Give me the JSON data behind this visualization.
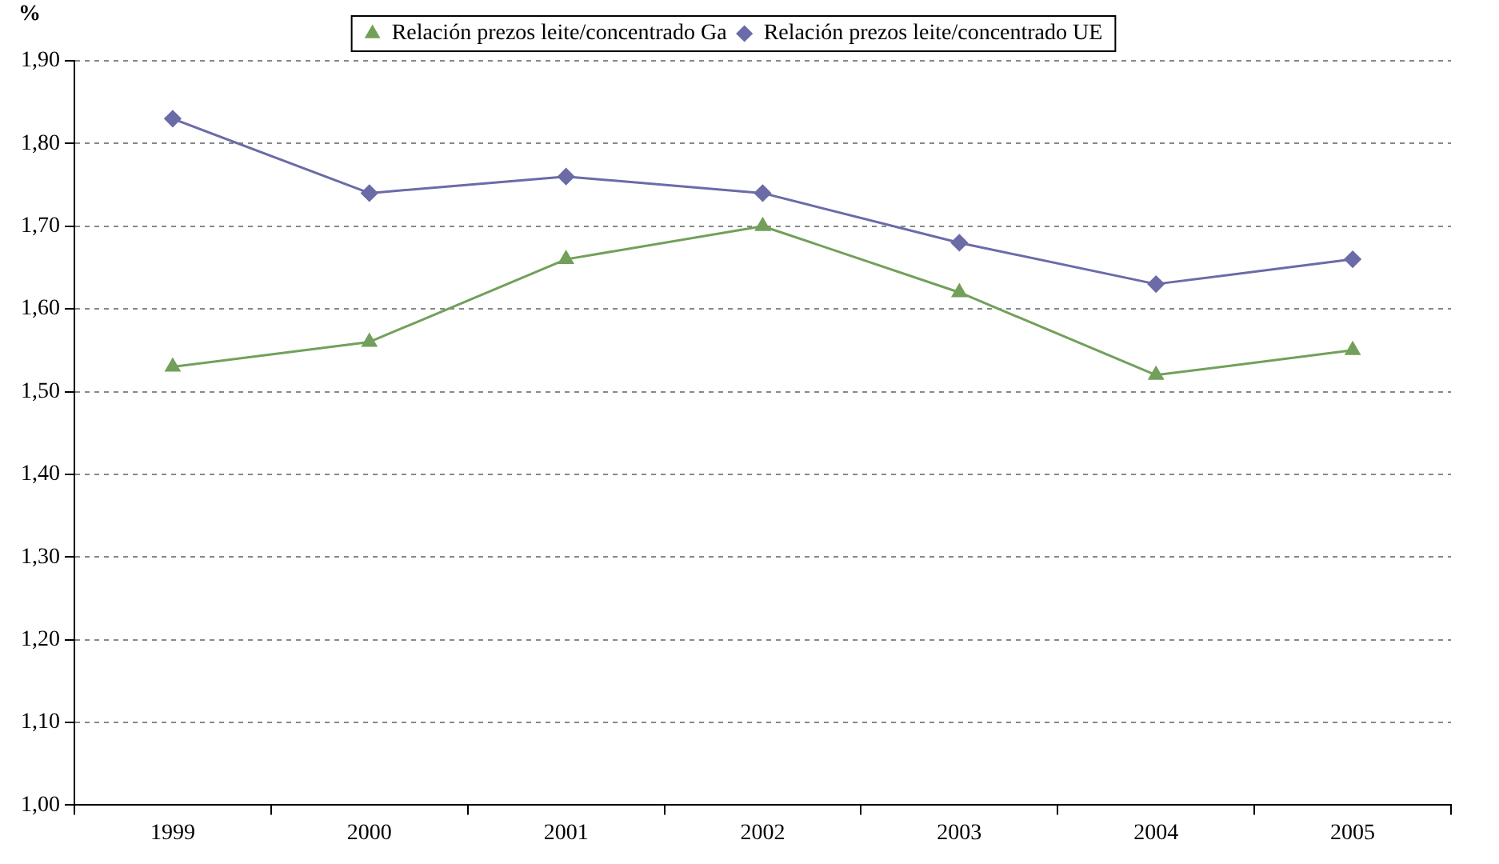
{
  "chart_data": {
    "type": "line",
    "ylabel": "%",
    "categories": [
      "1999",
      "2000",
      "2001",
      "2002",
      "2003",
      "2004",
      "2005"
    ],
    "series": [
      {
        "name": "Relación prezos leite/concentrado Ga",
        "color": "#72a05a",
        "marker": "triangle",
        "values": [
          1.53,
          1.56,
          1.66,
          1.7,
          1.62,
          1.52,
          1.55
        ]
      },
      {
        "name": "Relación prezos leite/concentrado UE",
        "color": "#6b6ba8",
        "marker": "diamond",
        "values": [
          1.83,
          1.74,
          1.76,
          1.74,
          1.68,
          1.63,
          1.66
        ]
      }
    ],
    "ylim": [
      1.0,
      1.9
    ],
    "yticks": [
      {
        "value": 1.0,
        "label": "1,00"
      },
      {
        "value": 1.1,
        "label": "1,10"
      },
      {
        "value": 1.2,
        "label": "1,20"
      },
      {
        "value": 1.3,
        "label": "1,30"
      },
      {
        "value": 1.4,
        "label": "1,40"
      },
      {
        "value": 1.5,
        "label": "1,50"
      },
      {
        "value": 1.6,
        "label": "1,60"
      },
      {
        "value": 1.7,
        "label": "1,70"
      },
      {
        "value": 1.8,
        "label": "1,80"
      },
      {
        "value": 1.9,
        "label": "1,90"
      }
    ],
    "grid": "y",
    "legend": "top",
    "line_style": "solid"
  }
}
